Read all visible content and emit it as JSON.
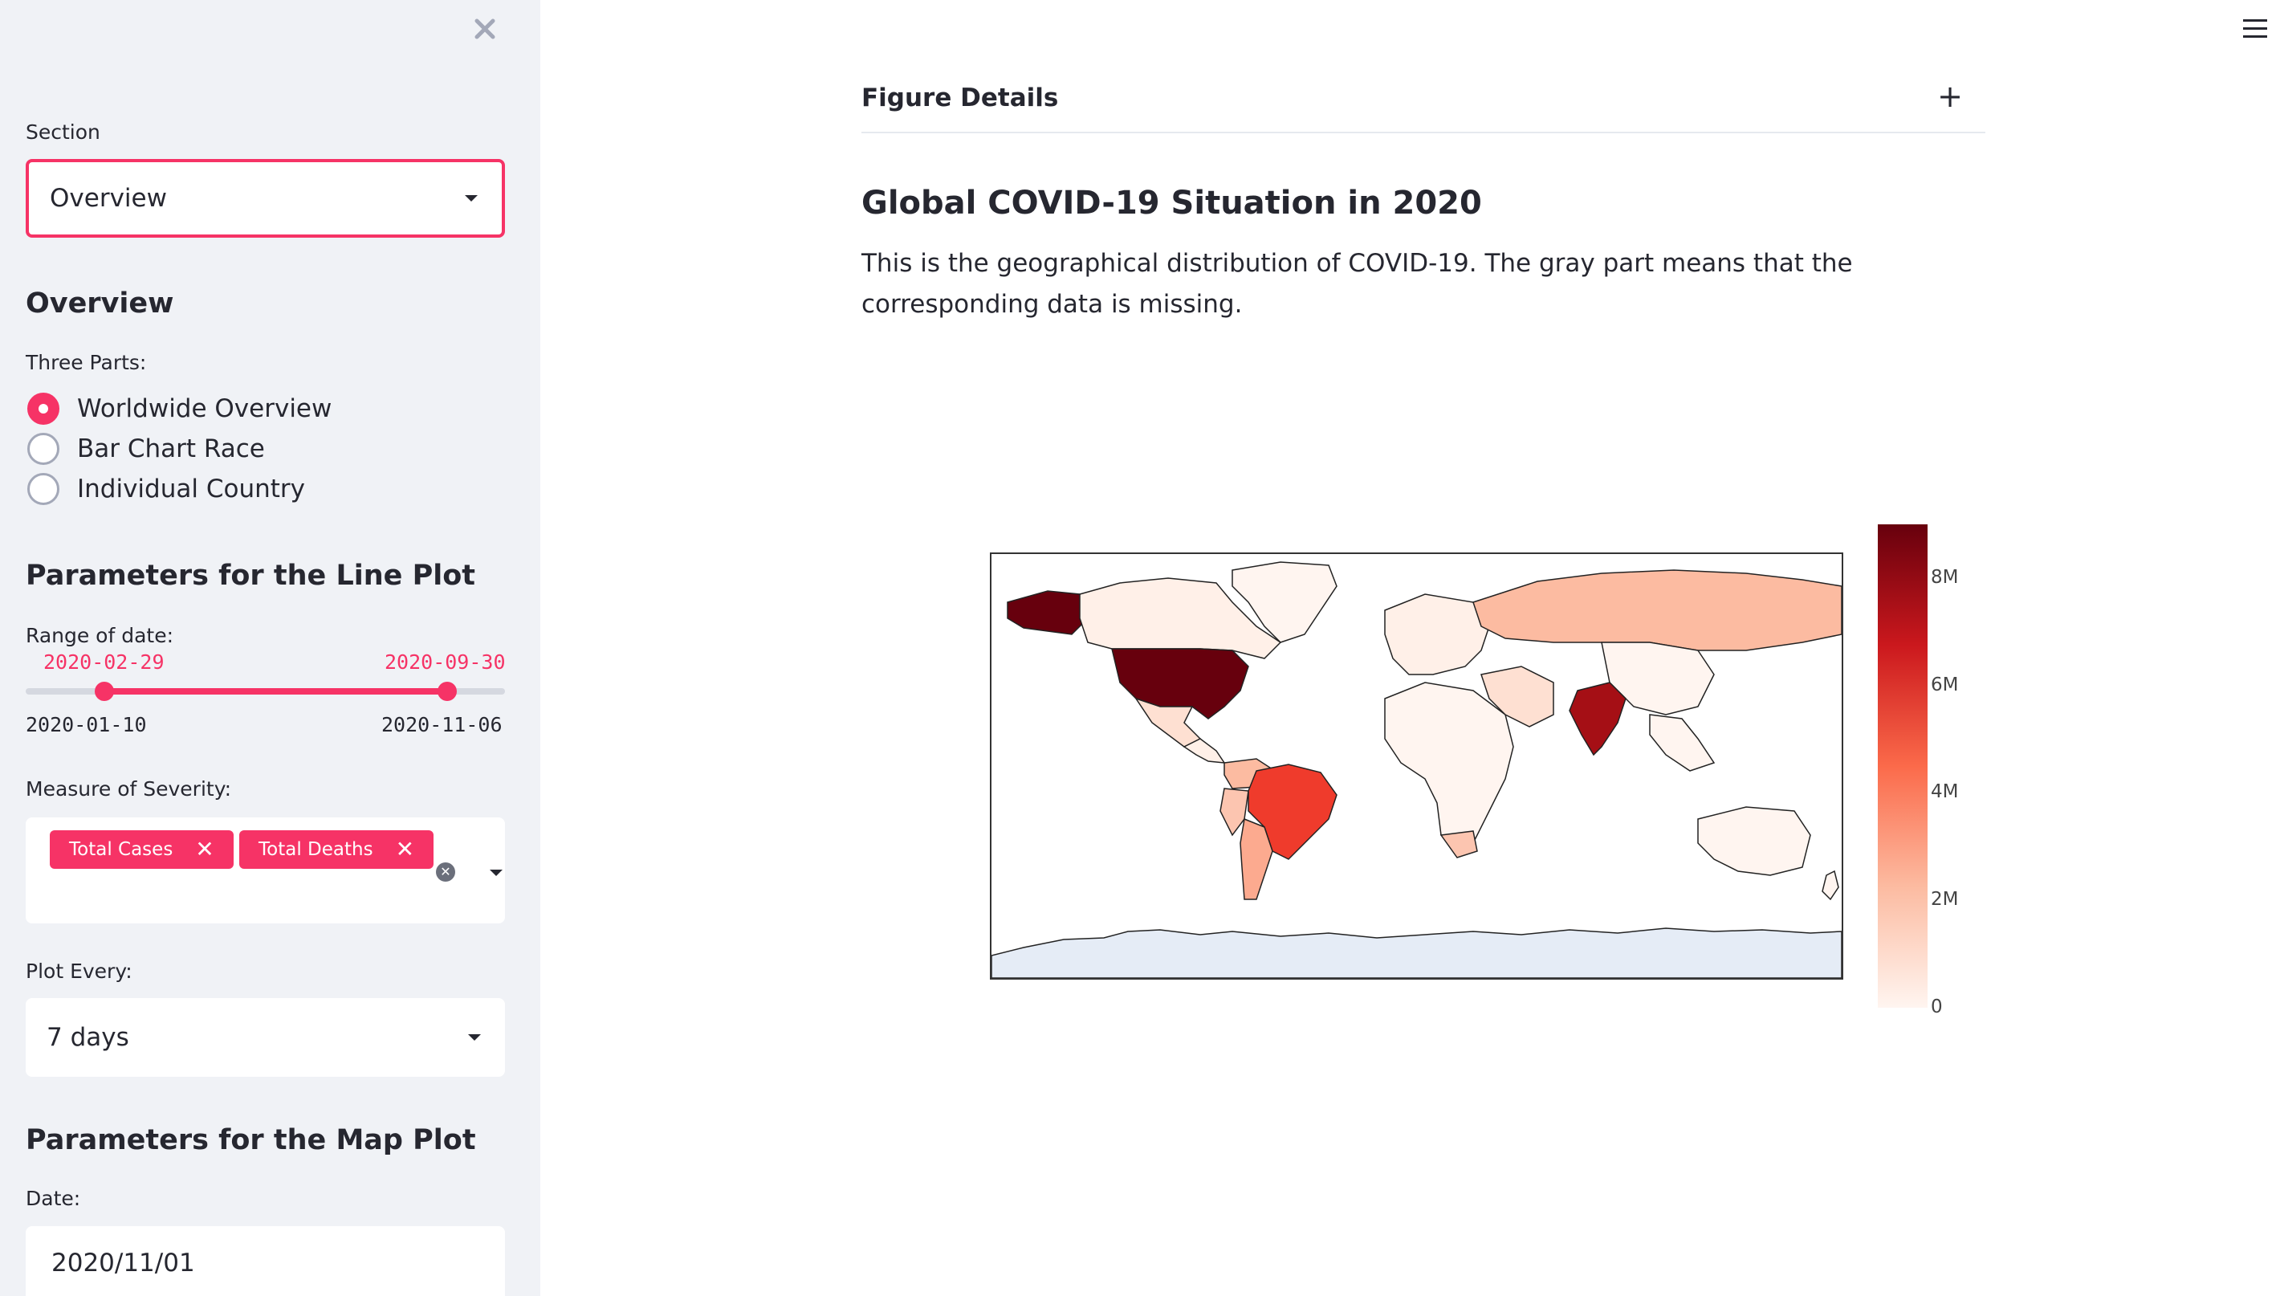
{
  "sidebar": {
    "section_label": "Section",
    "section_value": "Overview",
    "overview_heading": "Overview",
    "three_parts_label": "Three Parts:",
    "radio_options": [
      "Worldwide Overview",
      "Bar Chart Race",
      "Individual Country"
    ],
    "radio_selected": "Worldwide Overview",
    "line_heading": "Parameters for the Line Plot",
    "range_label": "Range of date:",
    "range_start": "2020-02-29",
    "range_end": "2020-09-30",
    "range_min": "2020-01-10",
    "range_max": "2020-11-06",
    "severity_label": "Measure of Severity:",
    "severity_tags": [
      "Total Cases",
      "Total Deaths"
    ],
    "plot_every_label": "Plot Every:",
    "plot_every_value": "7 days",
    "map_heading": "Parameters for the Map Plot",
    "date_label": "Date:",
    "date_value": "2020/11/01"
  },
  "main": {
    "expander_title": "Figure Details",
    "expander_icon": "+",
    "heading": "Global COVID-19 Situation in 2020",
    "description": "This is the geographical distribution of COVID-19. The gray part means that the corresponding data is missing."
  },
  "colors": {
    "accent": "#f63366",
    "sidebar_bg": "#f0f2f6",
    "text": "#262730"
  },
  "chart_data": {
    "type": "choropleth",
    "colorbar_ticks": [
      "0",
      "2M",
      "4M",
      "6M",
      "8M"
    ],
    "colorbar_range": [
      0,
      9000000
    ],
    "colorscale": [
      "#fff5f0",
      "#fcbba1",
      "#fb6a4a",
      "#cb181d",
      "#67000d"
    ],
    "countries": [
      {
        "name": "United States",
        "value": 9000000
      },
      {
        "name": "India",
        "value": 8200000
      },
      {
        "name": "Brazil",
        "value": 5500000
      },
      {
        "name": "Russia",
        "value": 1600000
      },
      {
        "name": "Argentina",
        "value": 1150000
      },
      {
        "name": "Colombia",
        "value": 1050000
      },
      {
        "name": "Peru",
        "value": 900000
      },
      {
        "name": "Mexico",
        "value": 920000
      },
      {
        "name": "South Africa",
        "value": 720000
      },
      {
        "name": "Canada",
        "value": 240000
      },
      {
        "name": "China",
        "value": 90000
      },
      {
        "name": "Australia",
        "value": 27000
      },
      {
        "name": "Antarctica",
        "value": null
      }
    ]
  }
}
